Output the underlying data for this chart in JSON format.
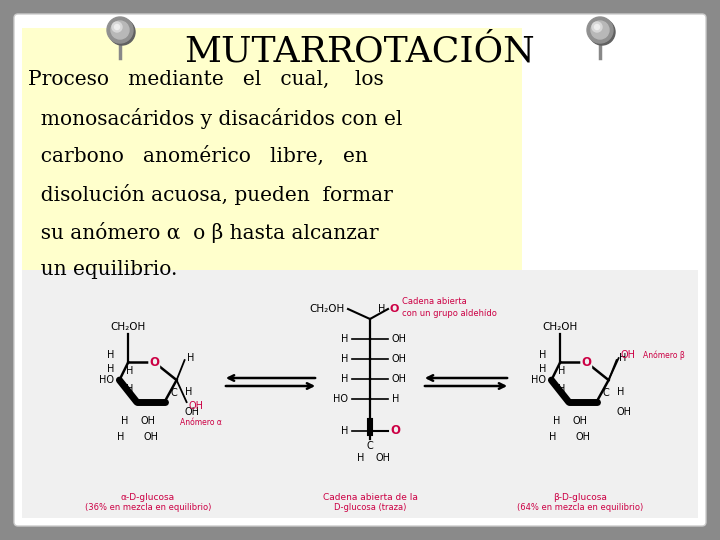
{
  "title": "MUTARROTACIÓN",
  "title_fontsize": 26,
  "background_color": "#8a8a8a",
  "card_color": "#ffffff",
  "highlight_color": "#ffffcc",
  "text_color": "#000000",
  "pink_color": "#cc0044",
  "body_lines": [
    "Proceso   mediante   el   cual,    los",
    "  monosacáridos y disacáridos con el",
    "  carbono   anomérico   libre,   en",
    "  disolución acuosa, pueden  formar",
    "  su anómero α  o β hasta alcanzar",
    "  un equilibrio."
  ],
  "caption_left_1": "α-D-glucosa",
  "caption_left_2": "(36% en mezcla en equilibrio)",
  "caption_center_1": "Cadena abierta de la",
  "caption_center_2": "D-glucosa (traza)",
  "caption_right_1": "β-D-glucosa",
  "caption_right_2": "(64% en mezcla en equilibrio)",
  "label_alpha": "Anómero α",
  "label_beta": "Anómero β",
  "label_cadena_1": "Cadena abierta",
  "label_cadena_2": "con un grupo aldehído"
}
